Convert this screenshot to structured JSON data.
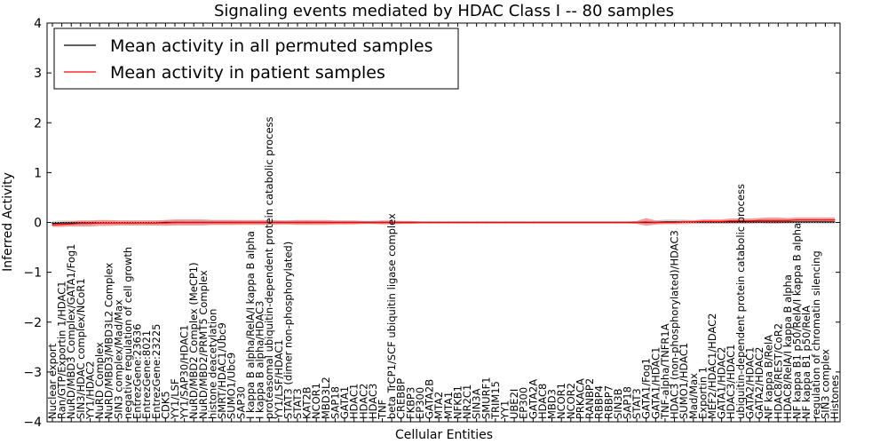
{
  "chart_data": {
    "type": "line",
    "title": "Signaling events mediated by HDAC Class I -- 80 samples",
    "xlabel": "Cellular Entities",
    "ylabel": "Inferred Activity",
    "ylim": [
      -4,
      4
    ],
    "yticks": [
      4,
      3,
      2,
      1,
      0,
      -1,
      -2,
      -3,
      -4
    ],
    "ytick_labels": [
      "4",
      "3",
      "2",
      "1",
      "0",
      "−1",
      "−2",
      "−3",
      "−4"
    ],
    "legend": {
      "placement": "top-left",
      "entries": [
        {
          "label": "Mean activity in all permuted samples",
          "color": "#000000"
        },
        {
          "label": "Mean activity in patient samples",
          "color": "#ff0000"
        }
      ]
    },
    "categories": [
      "Nuclear export",
      "Ran/GTP/Exportin 1/HDAC1",
      "NuRD/MBD3 Complex/GATA1/Fog1",
      "SIN3/HDAC complex/NCoR1",
      "YY1/HDAC2",
      "NuRD Complex",
      "NuRD/MBD3/MBD3L2 Complex",
      "SIN3 complex/Mad/Max",
      "negative regulation of cell growth",
      "EntrezGene:23636",
      "EntrezGene:8021",
      "EntrezGene:23225",
      "CDK5",
      "YY1/LSF",
      "YY1/SAP30/HDAC1",
      "NuRD/MBD2 Complex (MeCP1)",
      "NuRD/MBD2/PRMT5 Complex",
      "histone deacetylation",
      "SMRT/HDAC1/Ubc9",
      "SUMO1/Ubc9",
      "SAP30",
      "I kappa B alpha/RelA/I kappa B alpha",
      "I kappa B alpha/HDAC3",
      "proteasomal ubiquitin-dependent protein catabolic process",
      "YY1/LSF/HDAC1",
      "STAT3 (dimer non-phosphorylated)",
      "STAT3",
      "KAT2B",
      "NCOR1",
      "MBD3L2",
      "SAP18",
      "GATA1",
      "HDAC1",
      "HDAC2",
      "HDAC3",
      "TNF",
      "beta TrCP1/SCF ubiquitin ligase complex",
      "CREBBP",
      "FKBP3",
      "EP300",
      "GATA2B",
      "MTA2",
      "MTA1",
      "NFKB1",
      "NR2C1",
      "SIN3A",
      "SMURF1",
      "TRIM15",
      "YY1",
      "UBE2I",
      "EP300",
      "GATA2A",
      "HDAC8",
      "MBD3",
      "NCOR1",
      "NCOR2",
      "PRKACA",
      "RANBP2",
      "RBBP4",
      "RBBP7",
      "SIN3B",
      "SAP18",
      "STAT3",
      "GATA1/Fog1",
      "GATA1/HDAC1",
      "TNF-alpha/TNFR1A",
      "HDAC3 (non-phosphorylated)/HDAC3",
      "SUMO1/HDAC1",
      "Mad/Max",
      "Exportin 1",
      "MEF2/HDAC1/HDAC2",
      "GATA1/HDAC2",
      "HDAC3/HDAC1",
      "ubiquitin-dependent protein catabolic process",
      "GATA2/HDAC1",
      "GATA2/HDAC2",
      "NF kappa B/RelA",
      "HDAC8/REST/CoR2",
      "HDAC8/RelA/I kappa B alpha",
      "NF kappa B1 p50/RelA/I kappa B alpha",
      "NF kappa B1 p50/RelA",
      "regulation of chromatin silencing",
      "SIN3 complex",
      "Histones"
    ],
    "series": [
      {
        "name": "Mean activity in all permuted samples",
        "color": "#000000",
        "band_color": "#c8c8c8",
        "values": [
          -0.02,
          -0.01,
          -0.01,
          -0.01,
          -0.01,
          -0.01,
          -0.01,
          -0.01,
          -0.01,
          -0.01,
          -0.01,
          -0.01,
          0.0,
          0.0,
          0.0,
          0.0,
          0.0,
          0.0,
          0.0,
          0.0,
          0.0,
          0.0,
          0.0,
          0.0,
          0.0,
          0.0,
          0.0,
          0.0,
          0.0,
          0.0,
          0.0,
          0.0,
          0.0,
          0.0,
          0.0,
          0.0,
          0.0,
          0.0,
          0.0,
          0.0,
          0.0,
          0.0,
          0.0,
          0.0,
          0.0,
          0.0,
          0.0,
          0.0,
          0.0,
          0.0,
          0.0,
          0.0,
          0.0,
          0.0,
          0.0,
          0.0,
          0.0,
          0.0,
          0.0,
          0.0,
          0.0,
          0.0,
          0.0,
          0.0,
          0.0,
          0.01,
          0.01,
          0.01,
          0.01,
          0.01,
          0.01,
          0.01,
          0.01,
          0.01,
          0.01,
          0.01,
          0.01,
          0.01,
          0.01,
          0.01,
          0.01,
          0.01,
          0.01,
          0.01
        ],
        "spread": [
          0.05,
          0.05,
          0.05,
          0.05,
          0.05,
          0.05,
          0.05,
          0.05,
          0.05,
          0.05,
          0.05,
          0.05,
          0.05,
          0.05,
          0.05,
          0.05,
          0.05,
          0.05,
          0.05,
          0.05,
          0.04,
          0.04,
          0.04,
          0.04,
          0.04,
          0.04,
          0.04,
          0.04,
          0.03,
          0.03,
          0.03,
          0.03,
          0.03,
          0.03,
          0.03,
          0.03,
          0.02,
          0.02,
          0.02,
          0.02,
          0.02,
          0.02,
          0.02,
          0.02,
          0.02,
          0.02,
          0.02,
          0.02,
          0.02,
          0.02,
          0.02,
          0.02,
          0.02,
          0.02,
          0.02,
          0.02,
          0.02,
          0.02,
          0.02,
          0.02,
          0.02,
          0.02,
          0.02,
          0.03,
          0.04,
          0.05,
          0.05,
          0.05,
          0.04,
          0.04,
          0.04,
          0.04,
          0.04,
          0.04,
          0.04,
          0.04,
          0.04,
          0.04,
          0.04,
          0.04,
          0.04,
          0.04,
          0.04,
          0.04
        ]
      },
      {
        "name": "Mean activity in patient samples",
        "color": "#ff0000",
        "band_color": "#f08080",
        "values": [
          -0.05,
          -0.04,
          -0.03,
          -0.02,
          -0.02,
          -0.01,
          -0.01,
          -0.01,
          -0.01,
          -0.01,
          -0.01,
          -0.01,
          -0.01,
          0.0,
          0.0,
          0.0,
          0.0,
          0.0,
          0.0,
          0.0,
          0.0,
          0.0,
          0.0,
          0.0,
          0.0,
          0.0,
          0.0,
          0.0,
          0.0,
          0.0,
          0.0,
          0.0,
          0.0,
          0.0,
          0.0,
          0.0,
          0.0,
          0.0,
          0.0,
          0.0,
          0.0,
          0.0,
          0.0,
          0.0,
          0.0,
          0.0,
          0.0,
          0.0,
          0.0,
          0.0,
          0.0,
          0.0,
          0.0,
          0.0,
          0.0,
          0.0,
          0.0,
          0.0,
          0.0,
          0.0,
          0.0,
          0.0,
          0.0,
          0.01,
          0.0,
          0.0,
          0.0,
          0.01,
          0.01,
          0.02,
          0.02,
          0.02,
          0.03,
          0.03,
          0.03,
          0.04,
          0.04,
          0.04,
          0.04,
          0.05,
          0.05,
          0.05,
          0.05,
          0.05
        ],
        "spread": [
          0.04,
          0.05,
          0.05,
          0.06,
          0.06,
          0.06,
          0.06,
          0.05,
          0.05,
          0.05,
          0.05,
          0.05,
          0.06,
          0.06,
          0.06,
          0.06,
          0.06,
          0.05,
          0.05,
          0.05,
          0.05,
          0.05,
          0.05,
          0.05,
          0.04,
          0.04,
          0.05,
          0.05,
          0.05,
          0.05,
          0.04,
          0.04,
          0.04,
          0.03,
          0.03,
          0.04,
          0.04,
          0.03,
          0.03,
          0.02,
          0.02,
          0.02,
          0.02,
          0.02,
          0.02,
          0.02,
          0.02,
          0.02,
          0.02,
          0.02,
          0.02,
          0.02,
          0.02,
          0.02,
          0.02,
          0.02,
          0.02,
          0.02,
          0.02,
          0.02,
          0.02,
          0.02,
          0.03,
          0.08,
          0.04,
          0.03,
          0.03,
          0.03,
          0.03,
          0.04,
          0.04,
          0.04,
          0.05,
          0.05,
          0.05,
          0.05,
          0.06,
          0.06,
          0.05,
          0.05,
          0.05,
          0.05,
          0.05,
          0.05
        ]
      }
    ]
  }
}
